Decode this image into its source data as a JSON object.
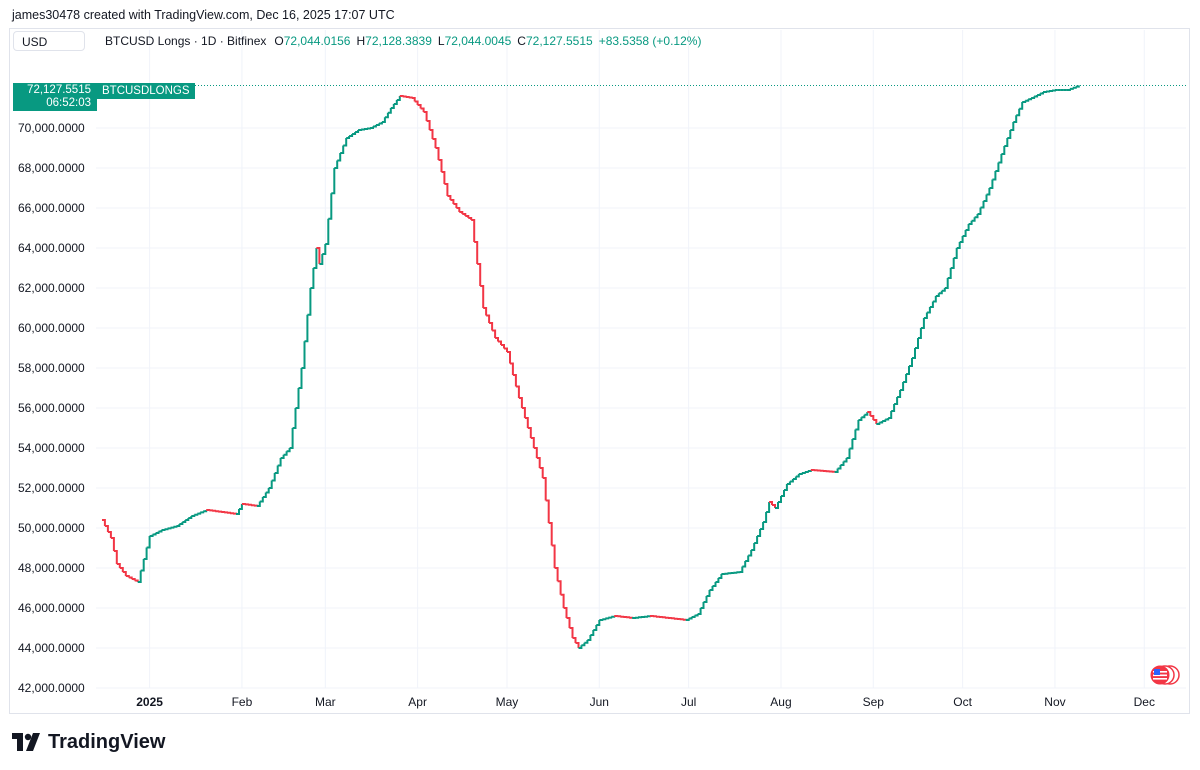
{
  "header": {
    "author_line": "james30478 created with TradingView.com, Dec 16, 2025 17:07 UTC"
  },
  "toolbar": {
    "currency": "USD"
  },
  "legend": {
    "symbol": "BTCUSD Longs · 1D · Bitfinex",
    "open_key": "O",
    "open": "72,044.0156",
    "high_key": "H",
    "high": "72,128.3839",
    "low_key": "L",
    "low": "72,044.0045",
    "close_key": "C",
    "close": "72,127.5515",
    "change": "+83.5358 (+0.12%)"
  },
  "last_price": {
    "value": "72,127.5515",
    "countdown": "06:52:03",
    "series_name": "BTCUSDLONGS"
  },
  "branding": {
    "logo_text": "TradingView"
  },
  "colors": {
    "up": "#089981",
    "down": "#f23645",
    "grid": "#f0f3fa",
    "text": "#131722"
  },
  "icons": {
    "logo": "tradingview-logo-icon",
    "flag": "us-flag-icon"
  },
  "chart_data": {
    "type": "line",
    "title": "BTCUSD Longs · 1D · Bitfinex",
    "xlabel": "",
    "ylabel": "",
    "ylim": [
      41000,
      74000
    ],
    "y_ticks": [
      42000,
      44000,
      46000,
      48000,
      50000,
      52000,
      54000,
      56000,
      58000,
      60000,
      62000,
      64000,
      66000,
      68000,
      70000
    ],
    "y_tick_labels": [
      "42,000.0000",
      "44,000.0000",
      "46,000.0000",
      "48,000.0000",
      "50,000.0000",
      "52,000.0000",
      "54,000.0000",
      "56,000.0000",
      "58,000.0000",
      "60,000.0000",
      "62,000.0000",
      "64,000.0000",
      "66,000.0000",
      "68,000.0000",
      "70,000.0000"
    ],
    "x_tick_labels": [
      "2025",
      "Feb",
      "Mar",
      "Apr",
      "May",
      "Jun",
      "Jul",
      "Aug",
      "Sep",
      "Oct",
      "Nov",
      "Dec"
    ],
    "x_tick_days": [
      16,
      47,
      75,
      106,
      136,
      167,
      197,
      228,
      259,
      289,
      320,
      350
    ],
    "series": [
      {
        "name": "BTCUSD Longs (daily close, approx.)",
        "points": [
          [
            0,
            50400
          ],
          [
            3,
            49500
          ],
          [
            5,
            48200
          ],
          [
            8,
            47600
          ],
          [
            12,
            47300
          ],
          [
            16,
            49600
          ],
          [
            20,
            49900
          ],
          [
            25,
            50100
          ],
          [
            30,
            50600
          ],
          [
            35,
            50900
          ],
          [
            40,
            50800
          ],
          [
            45,
            50700
          ],
          [
            47,
            51200
          ],
          [
            52,
            51100
          ],
          [
            56,
            52000
          ],
          [
            60,
            53500
          ],
          [
            63,
            54000
          ],
          [
            67,
            58000
          ],
          [
            70,
            62000
          ],
          [
            72,
            64000
          ],
          [
            73,
            63200
          ],
          [
            75,
            64200
          ],
          [
            78,
            68000
          ],
          [
            82,
            69500
          ],
          [
            86,
            69900
          ],
          [
            90,
            70000
          ],
          [
            94,
            70300
          ],
          [
            97,
            71000
          ],
          [
            100,
            71600
          ],
          [
            104,
            71500
          ],
          [
            108,
            70800
          ],
          [
            112,
            69000
          ],
          [
            116,
            66600
          ],
          [
            120,
            65800
          ],
          [
            124,
            65400
          ],
          [
            128,
            61000
          ],
          [
            132,
            59500
          ],
          [
            136,
            58800
          ],
          [
            140,
            56500
          ],
          [
            144,
            54500
          ],
          [
            148,
            52500
          ],
          [
            152,
            48000
          ],
          [
            155,
            46000
          ],
          [
            158,
            44500
          ],
          [
            160,
            44000
          ],
          [
            163,
            44400
          ],
          [
            167,
            45400
          ],
          [
            172,
            45600
          ],
          [
            178,
            45500
          ],
          [
            184,
            45600
          ],
          [
            190,
            45500
          ],
          [
            196,
            45400
          ],
          [
            200,
            45700
          ],
          [
            204,
            46900
          ],
          [
            208,
            47700
          ],
          [
            214,
            47800
          ],
          [
            218,
            48900
          ],
          [
            222,
            50300
          ],
          [
            224,
            51300
          ],
          [
            226,
            51000
          ],
          [
            230,
            52200
          ],
          [
            234,
            52700
          ],
          [
            238,
            52900
          ],
          [
            246,
            52800
          ],
          [
            250,
            53500
          ],
          [
            254,
            55400
          ],
          [
            257,
            55800
          ],
          [
            260,
            55200
          ],
          [
            264,
            55500
          ],
          [
            268,
            56900
          ],
          [
            272,
            58500
          ],
          [
            276,
            60500
          ],
          [
            280,
            61600
          ],
          [
            283,
            62000
          ],
          [
            287,
            64000
          ],
          [
            291,
            65200
          ],
          [
            294,
            65700
          ],
          [
            298,
            67000
          ],
          [
            302,
            68700
          ],
          [
            306,
            70300
          ],
          [
            309,
            71300
          ],
          [
            312,
            71500
          ],
          [
            316,
            71800
          ],
          [
            320,
            71900
          ],
          [
            324,
            71900
          ],
          [
            328,
            72127.5515
          ]
        ]
      }
    ],
    "last_value": 72127.5515
  }
}
